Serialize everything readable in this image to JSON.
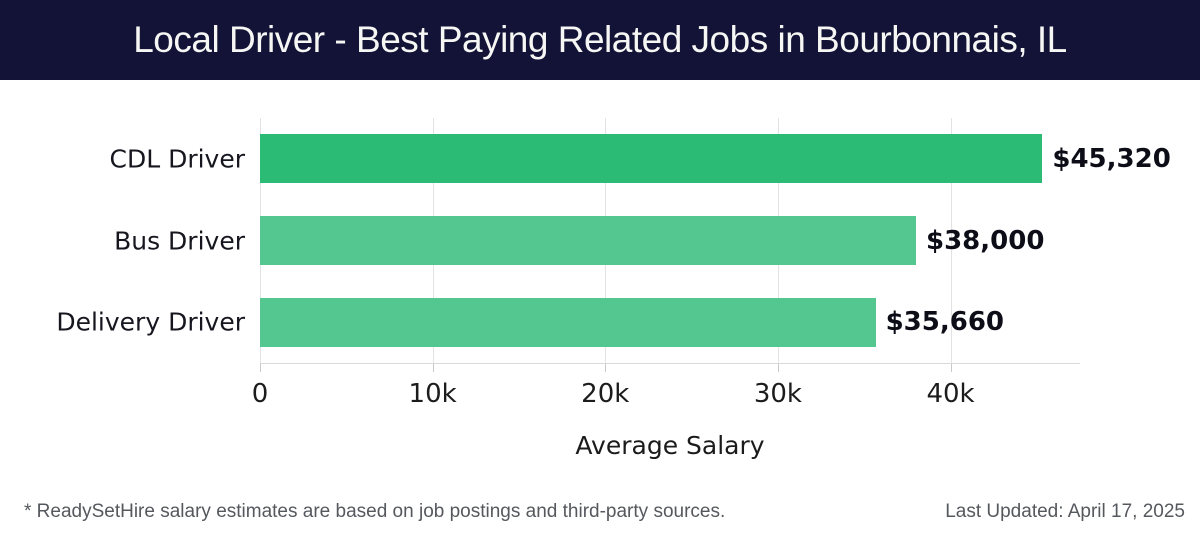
{
  "header": {
    "title": "Local Driver - Best Paying Related Jobs in Bourbonnais, IL"
  },
  "colors": {
    "header_bg": "#121336",
    "header_text": "#f6f7f4",
    "bar_primary": "#2cbb74",
    "bar_secondary": "#53c78f",
    "gridline": "#e3e3e3",
    "footer_text": "#55585d"
  },
  "chart_data": {
    "type": "bar",
    "orientation": "horizontal",
    "title": "Local Driver - Best Paying Related Jobs in Bourbonnais, IL",
    "categories": [
      "CDL Driver",
      "Bus Driver",
      "Delivery Driver"
    ],
    "values": [
      45320,
      38000,
      35660
    ],
    "value_labels": [
      "$45,320",
      "$38,000",
      "$35,660"
    ],
    "bar_colors": [
      "#2cbb74",
      "#53c78f",
      "#53c78f"
    ],
    "xlabel": "Average Salary",
    "ylabel": "",
    "xlim": [
      0,
      47500
    ],
    "x_ticks": [
      0,
      10000,
      20000,
      30000,
      40000
    ],
    "x_tick_labels": [
      "0",
      "10k",
      "20k",
      "30k",
      "40k"
    ],
    "grid": "vertical",
    "legend": "none"
  },
  "footer": {
    "disclaimer": "* ReadySetHire salary estimates are based on job postings and third-party sources.",
    "last_updated": "Last Updated: April 17, 2025"
  }
}
